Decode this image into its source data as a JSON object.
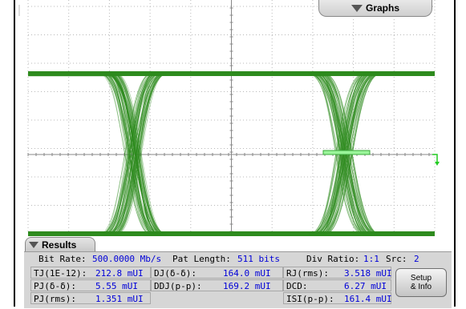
{
  "graphs_tab": {
    "label": "Graphs",
    "icon": "triangle-down-icon"
  },
  "results_tab": {
    "label": "Results",
    "icon": "triangle-down-icon"
  },
  "colors": {
    "trace": "#2e8b1e",
    "grid": "#b8b8b8",
    "value_text": "#0000d8",
    "panel": "#d6d6d6"
  },
  "summary": {
    "bit_rate_label": "Bit Rate:",
    "bit_rate_value": "500.0000 Mb/s",
    "pat_length_label": "Pat Length:",
    "pat_length_value": "511 bits",
    "div_ratio_label": "Div Ratio:",
    "div_ratio_value": "1:1",
    "src_label": "Src:",
    "src_value": "2"
  },
  "measurements": {
    "tj_label": "TJ(1E-12):",
    "tj_value": "212.8 mUI",
    "dj_label": "DJ(δ-δ):",
    "dj_value": "164.0 mUI",
    "rj_label": "RJ(rms):",
    "rj_value": "3.518 mUI",
    "pjdd_label": "PJ(δ-δ):",
    "pjdd_value": "5.55 mUI",
    "ddj_label": "DDJ(p-p):",
    "ddj_value": "169.2 mUI",
    "dcd_label": "DCD:",
    "dcd_value": "6.27 mUI",
    "pjrms_label": "PJ(rms):",
    "pjrms_value": "1.351 mUI",
    "isi_label": "ISI(p-p):",
    "isi_value": "161.4 mUI"
  },
  "setup_button": {
    "line1": "Setup",
    "line2": "& Info"
  }
}
